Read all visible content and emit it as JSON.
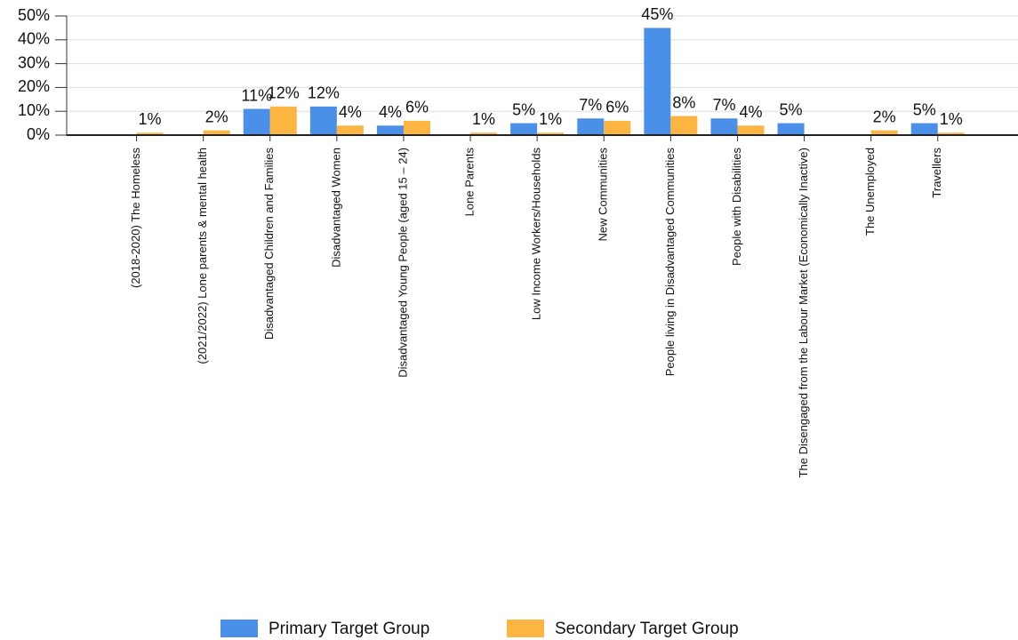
{
  "chart_data": {
    "type": "bar",
    "categories": [
      "(2018-2020) The Homeless",
      "(2021/2022) Lone parents & mental health",
      "Disadvantaged Children and Families",
      "Disadvantaged Women",
      "Disadvantaged Young People (aged 15 – 24)",
      "Lone Parents",
      "Low Income Workers/Households",
      "New Communities",
      "People living in Disadvantaged Communities",
      "People with Disabilities",
      "The Disengaged from the Labour Market (Economically Inactive)",
      "The Unemployed",
      "Travellers"
    ],
    "series": [
      {
        "name": "Primary Target Group",
        "color": "#4a8fe8",
        "values": [
          null,
          null,
          11,
          12,
          4,
          null,
          5,
          7,
          45,
          7,
          5,
          null,
          5
        ],
        "value_labels": [
          null,
          null,
          "11%",
          "12%",
          "4%",
          null,
          "5%",
          "7%",
          "45%",
          "7%",
          "5%",
          null,
          "5%"
        ]
      },
      {
        "name": "Secondary Target Group",
        "color": "#fbb540",
        "values": [
          1,
          2,
          12,
          4,
          6,
          1,
          1,
          6,
          8,
          4,
          null,
          2,
          1
        ],
        "value_labels": [
          "1%",
          "2%",
          "12%",
          "4%",
          "6%",
          "1%",
          "1%",
          "6%",
          "8%",
          "4%",
          null,
          "2%",
          "1%"
        ]
      }
    ],
    "ylim": [
      0,
      50
    ],
    "yticks": [
      {
        "value": 0,
        "label": "0%"
      },
      {
        "value": 10,
        "label": "10%"
      },
      {
        "value": 20,
        "label": "20%"
      },
      {
        "value": 30,
        "label": "30%"
      },
      {
        "value": 40,
        "label": "40%"
      },
      {
        "value": 50,
        "label": "50%"
      }
    ],
    "grid": true,
    "legend": "bottom"
  }
}
